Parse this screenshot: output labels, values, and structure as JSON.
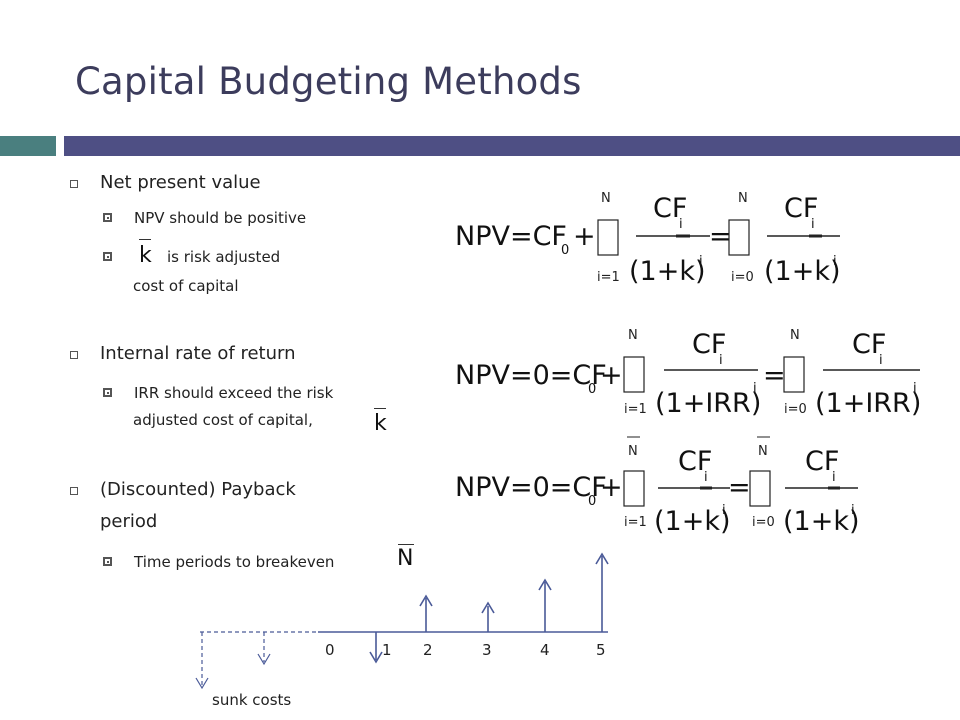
{
  "slide": {
    "title": "Capital Budgeting Methods",
    "colors": {
      "accent_teal": "#4a7f7f",
      "accent_navy": "#4e4f84",
      "title": "#3c3c5c",
      "timeline": "#4a5a98"
    }
  },
  "bullets": {
    "npv": {
      "heading": "Net present value",
      "sub1": "NPV should be positive",
      "k_symbol": "k",
      "sub2_a": "is risk adjusted",
      "sub2_b": "cost of capital"
    },
    "irr": {
      "heading": "Internal rate of return",
      "sub1_a": "IRR should exceed the risk",
      "sub1_b": "adjusted cost of capital,",
      "k_symbol": "k"
    },
    "payback": {
      "heading_a": "(Discounted) Payback",
      "heading_b": "period",
      "sub1": "Time periods to breakeven",
      "n_symbol": "N"
    }
  },
  "formulas": {
    "f1": {
      "lhs": "NPV=CF",
      "sub0": "0",
      "plus": "+",
      "upper1": "N",
      "lower1": "i=1",
      "num": "CF",
      "num_sub": "i",
      "den": "(1+k)",
      "den_sup": "i",
      "eq": "=",
      "upper2": "N",
      "lower2": "i=0"
    },
    "f2": {
      "lhs": "NPV=0=CF",
      "sub0": "0",
      "plus": "+",
      "upper1": "N",
      "lower1": "i=1",
      "num": "CF",
      "num_sub": "i",
      "den": "(1+IRR)",
      "den_sup": "i",
      "eq": "=",
      "upper2": "N",
      "lower2": "i=0"
    },
    "f3": {
      "lhs": "NPV=0=CF",
      "sub0": "0",
      "plus": "+",
      "upper1": "N",
      "lower1": "i=1",
      "num": "CF",
      "num_sub": "i",
      "den": "(1+k)",
      "den_sup": "i",
      "eq": "=",
      "upper2": "N",
      "lower2": "i=0"
    }
  },
  "timeline": {
    "periods": [
      "0",
      "1",
      "2",
      "3",
      "4",
      "5"
    ],
    "sunk_label": "sunk costs"
  }
}
